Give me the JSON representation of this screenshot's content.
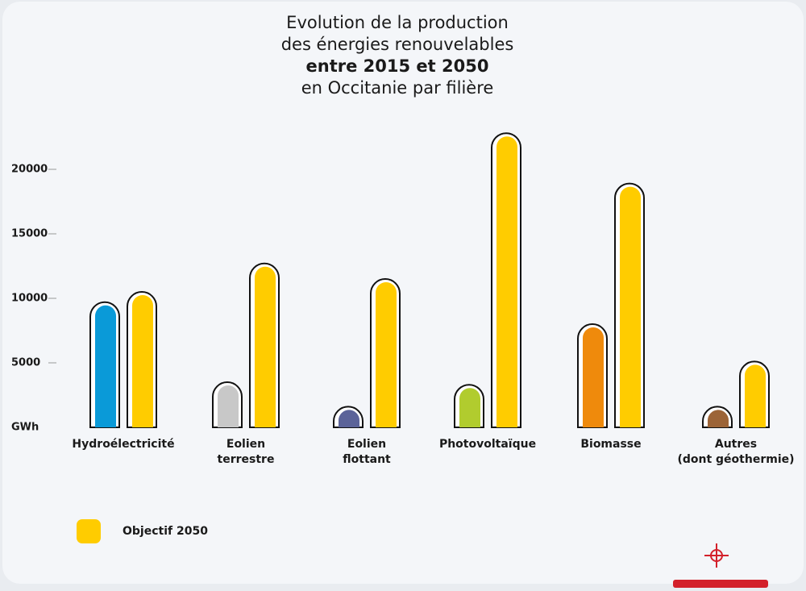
{
  "chart_data": {
    "type": "bar",
    "title_lines": [
      "Evolution de la production",
      "des énergies renouvelables",
      "entre 2015 et 2050",
      "en Occitanie par filière"
    ],
    "y_label": "GWh",
    "categories": [
      [
        "Hydroélectricité"
      ],
      [
        "Eolien",
        "terrestre"
      ],
      [
        "Eolien",
        "flottant"
      ],
      [
        "Photovoltaïque"
      ],
      [
        "Biomasse"
      ],
      [
        "Autres",
        "(dont géothermie)"
      ]
    ],
    "series": [
      {
        "colors": [
          "#0a9ad8",
          "#c8c8c8",
          "#5b6399",
          "#b1cc2e",
          "#ef8a0c",
          "#9c6437"
        ],
        "values": [
          9700,
          3500,
          1600,
          3300,
          8000,
          1600
        ]
      },
      {
        "name": "Objectif 2050",
        "color": "#ffcc00",
        "values": [
          10500,
          12700,
          11500,
          22800,
          18900,
          5100
        ]
      }
    ],
    "ylim": [
      0,
      24000
    ],
    "yticks": [
      5000,
      10000,
      15000,
      20000
    ]
  }
}
